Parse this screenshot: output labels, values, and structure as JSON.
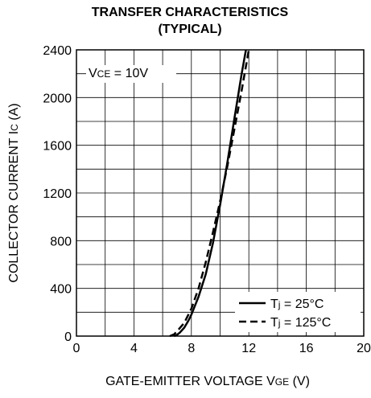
{
  "chart_data": {
    "type": "line",
    "title": "TRANSFER CHARACTERISTICS",
    "subtitle": "(TYPICAL)",
    "xlabel": {
      "main": "GATE-EMITTER VOLTAGE V",
      "sub": "GE",
      "unit": " (V)"
    },
    "ylabel": {
      "main": "COLLECTOR CURRENT I",
      "sub": "C",
      "unit": " (A)"
    },
    "xlim": [
      0,
      20
    ],
    "ylim": [
      0,
      2400
    ],
    "x_ticks": [
      0,
      4,
      8,
      12,
      16,
      20
    ],
    "y_ticks": [
      0,
      400,
      800,
      1200,
      1600,
      2000,
      2400
    ],
    "x_grid_step": 2,
    "y_grid_step": 200,
    "grid": true,
    "annotation": {
      "prefix": "V",
      "sub": "CE",
      "text": " = 10V"
    },
    "legend_position": "bottom-right",
    "series": [
      {
        "name": {
          "prefix": "T",
          "sub": "j",
          "text": " = 25°C"
        },
        "style": "solid",
        "x": [
          6.8,
          7.0,
          7.2,
          7.5,
          7.8,
          8.0,
          8.5,
          9.0,
          9.5,
          10.0,
          10.5,
          11.0,
          11.5,
          11.8
        ],
        "y": [
          0,
          10,
          30,
          70,
          130,
          180,
          330,
          520,
          780,
          1100,
          1450,
          1830,
          2200,
          2400
        ]
      },
      {
        "name": {
          "prefix": "T",
          "sub": "j",
          "text": " = 125°C"
        },
        "style": "dashed",
        "x": [
          6.5,
          6.8,
          7.0,
          7.5,
          8.0,
          8.5,
          9.0,
          9.5,
          10.0,
          10.5,
          11.0,
          11.5,
          12.0
        ],
        "y": [
          0,
          15,
          40,
          110,
          230,
          400,
          620,
          870,
          1130,
          1420,
          1740,
          2060,
          2400
        ]
      }
    ]
  }
}
